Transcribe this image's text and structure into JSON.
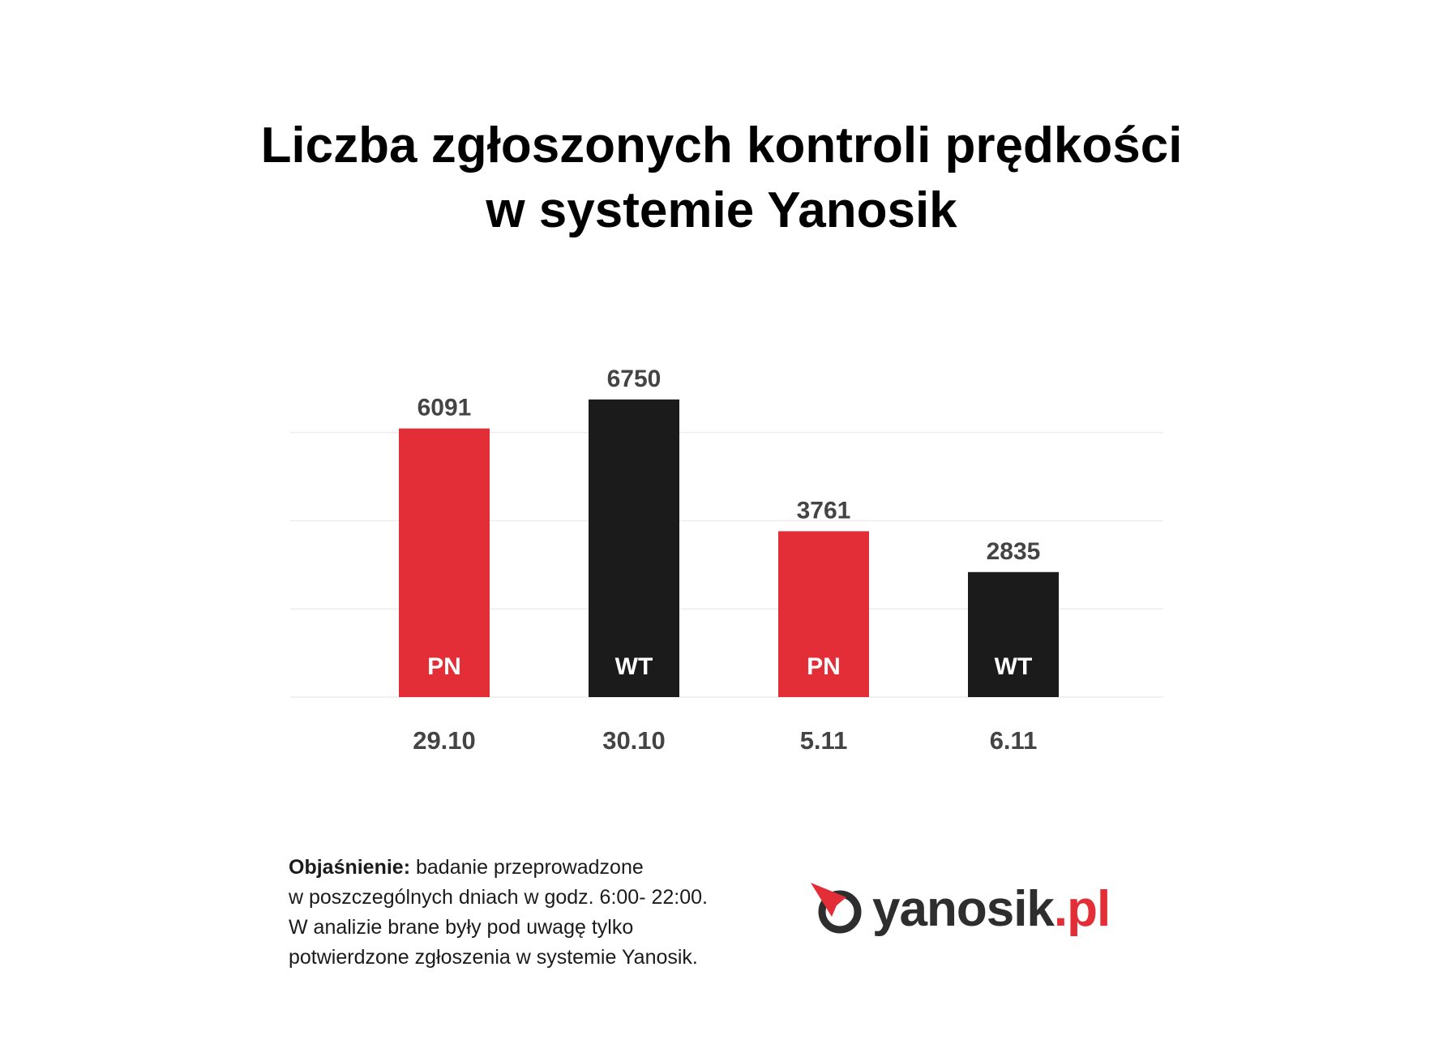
{
  "title": {
    "line1": "Liczba zgłoszonych kontroli prędkości",
    "line2": "w systemie Yanosik"
  },
  "chart_data": {
    "type": "bar",
    "categories": [
      "29.10",
      "30.10",
      "5.11",
      "6.11"
    ],
    "values": [
      6091,
      6750,
      3761,
      2835
    ],
    "bar_labels": [
      "PN",
      "WT",
      "PN",
      "WT"
    ],
    "bar_colors": [
      "#e32d37",
      "#1b1b1b",
      "#e32d37",
      "#1b1b1b"
    ],
    "ylim": [
      0,
      7500
    ],
    "grid": true,
    "legend": "none"
  },
  "note": {
    "lead": "Objaśnienie:",
    "line1": " badanie przeprowadzone",
    "line2": "w poszczególnych dniach w godz. 6:00- 22:00.",
    "line3": "W analizie brane były pod uwagę tylko",
    "line4": "potwierdzone zgłoszenia w systemie Yanosik."
  },
  "logo": {
    "name": "yanosik",
    "tld": ".pl",
    "icon": "yanosik-compass-icon"
  },
  "colors": {
    "red": "#e32d37",
    "dark": "#1b1b1b",
    "label": "#444444",
    "grid": "#ececec"
  }
}
